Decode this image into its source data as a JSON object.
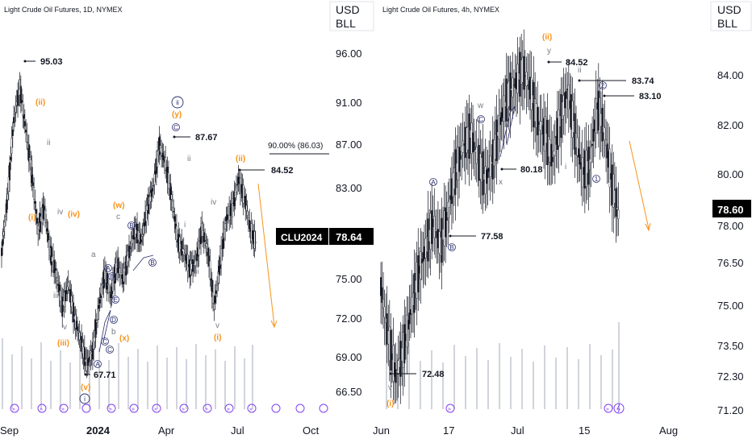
{
  "colors": {
    "background": "#ffffff",
    "candle": "#131722",
    "orange": "#f7931a",
    "gray": "#787b86",
    "navy": "#2a2e6e",
    "volume": "#d1d4dc",
    "event": "#7e3ff2",
    "badge_bg": "#000000",
    "badge_fg": "#ffffff"
  },
  "chart_data": [
    {
      "type": "candlestick",
      "title": "Light Crude Oil Futures, 1D, NYMEX",
      "unit_label": [
        "USD",
        "BLL"
      ],
      "y_ticks": [
        "96.00",
        "91.00",
        "87.00",
        "83.00",
        "78.64",
        "75.00",
        "72.00",
        "69.00",
        "66.50"
      ],
      "x_ticks": [
        "Sep",
        "2024",
        "Apr",
        "Jul",
        "Oct"
      ],
      "ylim": [
        65,
        98
      ],
      "close_series": [
        78.0,
        83.0,
        90.0,
        93.0,
        89.0,
        85.0,
        80.0,
        82.0,
        78.0,
        76.0,
        73.0,
        75.0,
        72.0,
        70.0,
        67.71,
        69.0,
        73.0,
        76.0,
        74.0,
        77.0,
        75.5,
        78.0,
        80.0,
        79.0,
        82.0,
        84.0,
        87.67,
        86.0,
        83.0,
        79.0,
        78.0,
        76.5,
        77.0,
        80.0,
        78.0,
        73.0,
        77.0,
        81.0,
        82.0,
        84.52,
        83.0,
        80.0,
        78.64
      ],
      "markers": [
        {
          "label": "95.03",
          "value": 95.03
        },
        {
          "label": "87.67",
          "value": 87.67
        },
        {
          "label": "84.52",
          "value": 84.52
        },
        {
          "label": "67.71",
          "value": 67.71
        }
      ],
      "target_label": "90.00% (86.03)",
      "target_value": 86.03,
      "symbol_badge": {
        "symbol": "CLU2024",
        "price": "78.64"
      },
      "wave_labels": {
        "orange": [
          "(ii)",
          "(i)",
          "(iv)",
          "(w)",
          "(iii)",
          "(v)",
          "(x)",
          "(y)",
          "(ii)",
          "(i)"
        ],
        "gray": [
          "ii",
          "i",
          "iv",
          "iii",
          "v",
          "a",
          "b",
          "c",
          "ii",
          "i",
          "iv",
          "iii",
          "v"
        ],
        "navy": [
          "A",
          "B",
          "C",
          "D",
          "E",
          "A",
          "B",
          "C",
          "ii",
          "i",
          "B",
          "C"
        ]
      },
      "event_count": 16
    },
    {
      "type": "candlestick",
      "title": "Light Crude Oil Futures, 4h, NYMEX",
      "unit_label": [
        "USD",
        "BLL"
      ],
      "y_ticks": [
        "84.00",
        "82.00",
        "80.00",
        "78.00",
        "76.50",
        "75.00",
        "73.50",
        "72.30",
        "71.20"
      ],
      "x_ticks": [
        "Jun",
        "17",
        "Jul",
        "15",
        "Aug"
      ],
      "ylim": [
        70.8,
        86.0
      ],
      "close_series": [
        76.0,
        74.0,
        72.48,
        73.5,
        75.0,
        76.5,
        77.5,
        78.5,
        77.58,
        79.0,
        80.5,
        81.5,
        82.0,
        81.0,
        80.18,
        81.0,
        82.5,
        83.5,
        84.0,
        84.52,
        83.8,
        82.5,
        82.0,
        81.0,
        82.5,
        83.74,
        82.0,
        80.5,
        80.8,
        83.1,
        82.0,
        80.0,
        78.6
      ],
      "markers": [
        {
          "label": "84.52",
          "value": 84.52
        },
        {
          "label": "83.74",
          "value": 83.74
        },
        {
          "label": "83.10",
          "value": 83.1
        },
        {
          "label": "80.18",
          "value": 80.18
        },
        {
          "label": "77.58",
          "value": 77.58
        },
        {
          "label": "72.48",
          "value": 72.48
        }
      ],
      "price_badge": "78.60",
      "wave_labels": {
        "orange": [
          "(ii)",
          "(i)"
        ],
        "gray": [
          "y",
          "w",
          "x",
          "ii",
          "i",
          "v"
        ],
        "navy": [
          "A",
          "B",
          "C",
          "1",
          "2"
        ]
      },
      "event_count": 5
    }
  ]
}
